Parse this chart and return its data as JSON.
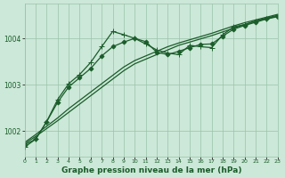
{
  "title": "Graphe pression niveau de la mer (hPa)",
  "background_color": "#cce8d8",
  "grid_color": "#99c4aa",
  "line_color": "#1a5c2a",
  "xlim": [
    0,
    23
  ],
  "ylim": [
    1001.45,
    1004.75
  ],
  "yticks": [
    1002,
    1003,
    1004
  ],
  "xticks": [
    0,
    1,
    2,
    3,
    4,
    5,
    6,
    7,
    8,
    9,
    10,
    11,
    12,
    13,
    14,
    15,
    16,
    17,
    18,
    19,
    20,
    21,
    22,
    23
  ],
  "series": [
    {
      "x": [
        0,
        1,
        2,
        3,
        4,
        5,
        6,
        7,
        8,
        9,
        10,
        11,
        12,
        13,
        14,
        15,
        16,
        17,
        18,
        19,
        20,
        21,
        22,
        23
      ],
      "y": [
        1001.72,
        1001.88,
        1002.05,
        1002.22,
        1002.4,
        1002.58,
        1002.76,
        1002.94,
        1003.12,
        1003.3,
        1003.45,
        1003.55,
        1003.65,
        1003.75,
        1003.85,
        1003.92,
        1003.99,
        1004.06,
        1004.14,
        1004.22,
        1004.3,
        1004.38,
        1004.44,
        1004.5
      ],
      "marker": null,
      "markersize": 0,
      "linewidth": 0.9
    },
    {
      "x": [
        0,
        1,
        2,
        3,
        4,
        5,
        6,
        7,
        8,
        9,
        10,
        11,
        12,
        13,
        14,
        15,
        16,
        17,
        18,
        19,
        20,
        21,
        22,
        23
      ],
      "y": [
        1001.75,
        1001.92,
        1002.1,
        1002.28,
        1002.48,
        1002.66,
        1002.84,
        1003.02,
        1003.2,
        1003.38,
        1003.52,
        1003.62,
        1003.72,
        1003.82,
        1003.9,
        1003.97,
        1004.04,
        1004.11,
        1004.19,
        1004.27,
        1004.34,
        1004.4,
        1004.46,
        1004.52
      ],
      "marker": null,
      "markersize": 0,
      "linewidth": 0.9
    },
    {
      "x": [
        0,
        1,
        2,
        3,
        4,
        5,
        6,
        7,
        8,
        9,
        10,
        11,
        12,
        13,
        14,
        15,
        16,
        17,
        18,
        19,
        20,
        21,
        22,
        23
      ],
      "y": [
        1001.7,
        1001.82,
        1002.2,
        1002.62,
        1002.95,
        1003.15,
        1003.35,
        1003.62,
        1003.82,
        1003.92,
        1004.0,
        1003.93,
        1003.7,
        1003.65,
        1003.72,
        1003.8,
        1003.87,
        1003.88,
        1004.05,
        1004.2,
        1004.28,
        1004.35,
        1004.42,
        1004.47
      ],
      "marker": "D",
      "markersize": 2.5,
      "linewidth": 0.9
    },
    {
      "x": [
        0,
        1,
        2,
        3,
        4,
        5,
        6,
        7,
        8,
        9,
        10,
        11,
        12,
        13,
        14,
        15,
        16,
        17,
        18,
        19,
        20,
        21,
        22,
        23
      ],
      "y": [
        1001.65,
        1001.82,
        1002.2,
        1002.68,
        1003.02,
        1003.22,
        1003.48,
        1003.82,
        1004.15,
        1004.08,
        1004.0,
        1003.88,
        1003.75,
        1003.68,
        1003.65,
        1003.85,
        1003.82,
        1003.8,
        1004.08,
        1004.25,
        1004.3,
        1004.37,
        1004.43,
        1004.48
      ],
      "marker": "+",
      "markersize": 4.5,
      "linewidth": 0.9
    }
  ],
  "xtick_fontsize": 4.5,
  "ytick_fontsize": 5.5,
  "title_fontsize": 6.5,
  "title_bold": true
}
